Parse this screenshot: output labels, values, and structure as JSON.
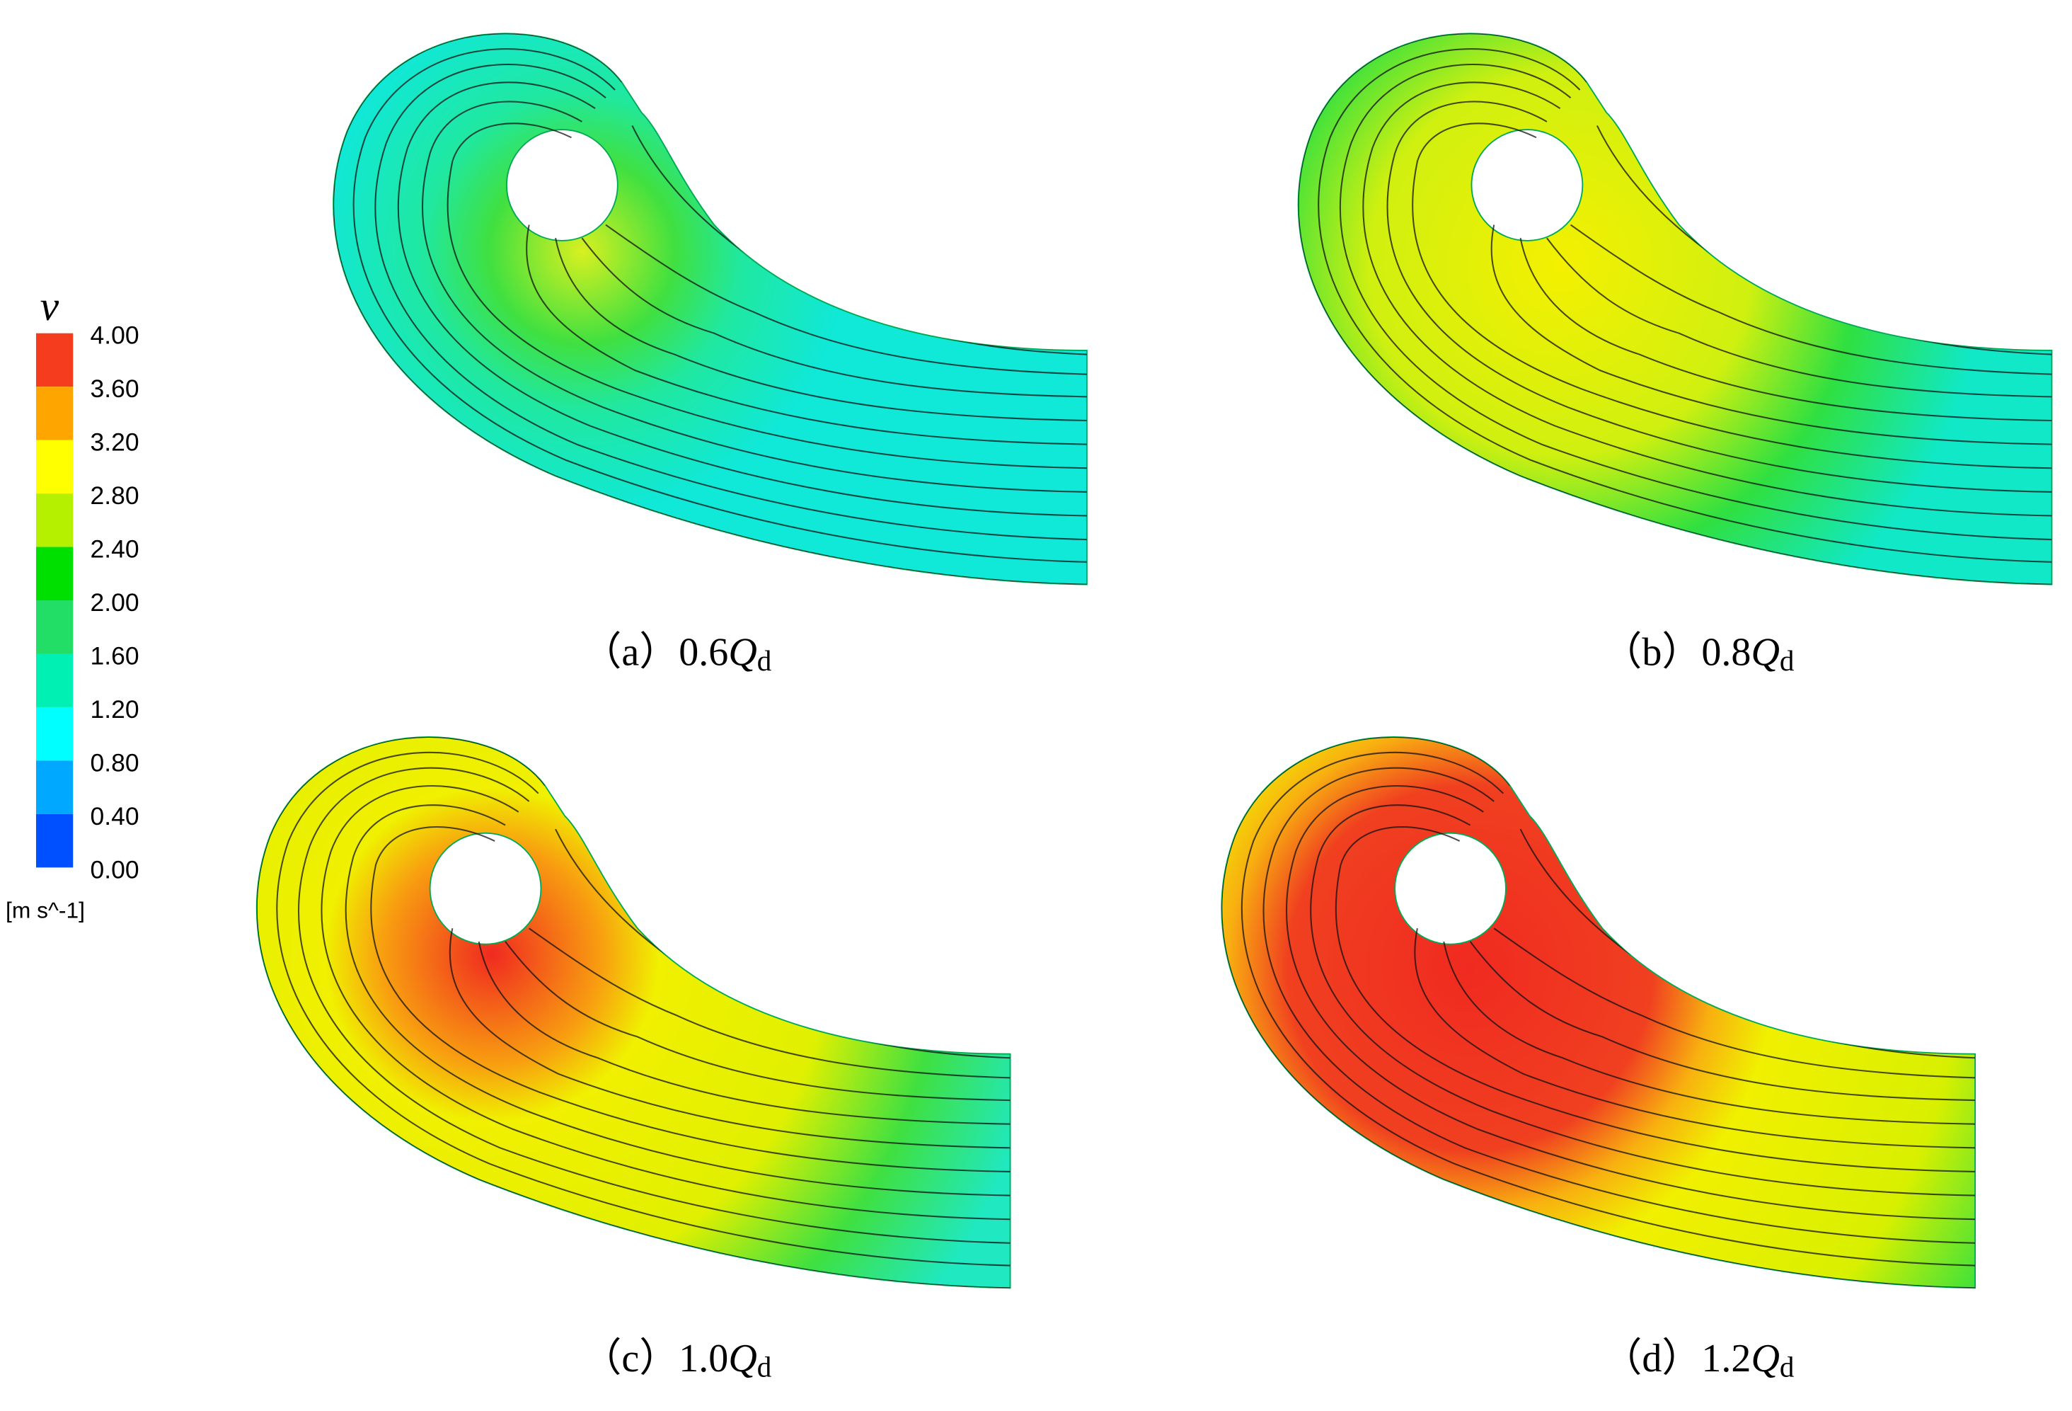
{
  "legend": {
    "symbol": "v",
    "ticks": [
      "4.00",
      "3.60",
      "3.20",
      "2.80",
      "2.40",
      "2.00",
      "1.60",
      "1.20",
      "0.80",
      "0.40",
      "0.00"
    ],
    "unit": "[m s^-1]"
  },
  "panels": [
    {
      "tag": "（a）",
      "coef": "0.6",
      "symbol": "Q",
      "subscript": "d"
    },
    {
      "tag": "（b）",
      "coef": "0.8",
      "symbol": "Q",
      "subscript": "d"
    },
    {
      "tag": "（c）",
      "coef": "1.0",
      "symbol": "Q",
      "subscript": "d"
    },
    {
      "tag": "（d）",
      "coef": "1.2",
      "symbol": "Q",
      "subscript": "d"
    }
  ]
}
